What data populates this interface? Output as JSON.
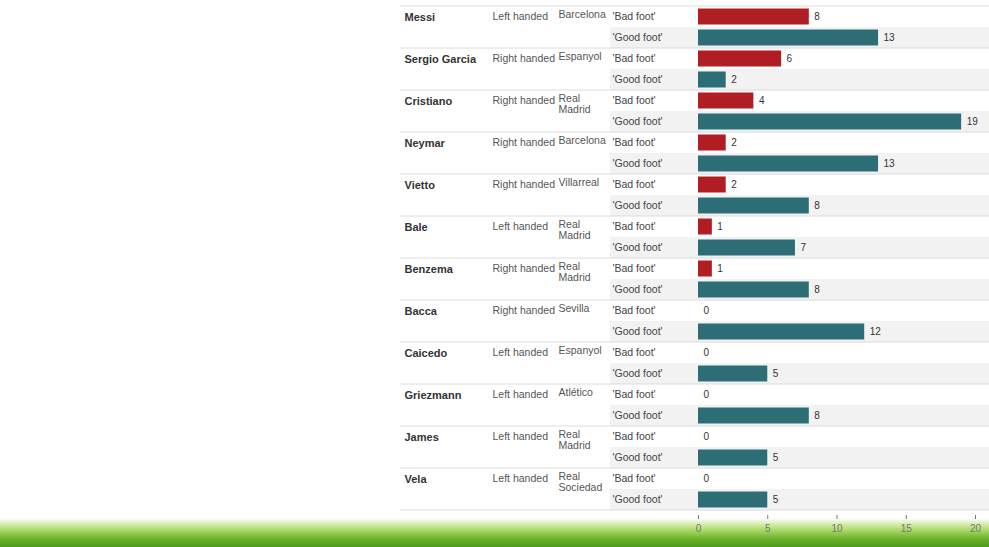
{
  "chart_data": {
    "type": "bar",
    "orientation": "horizontal",
    "categories": [
      "Messi",
      "Sergio Garcia",
      "Cristiano",
      "Neymar",
      "Vietto",
      "Bale",
      "Benzema",
      "Bacca",
      "Caicedo",
      "Griezmann",
      "James",
      "Vela"
    ],
    "handedness": [
      "Left handed",
      "Right handed",
      "Right handed",
      "Right handed",
      "Right handed",
      "Left handed",
      "Right handed",
      "Right handed",
      "Left handed",
      "Left handed",
      "Left handed",
      "Left handed"
    ],
    "clubs": [
      "Barcelona",
      "Espanyol",
      "Real Madrid",
      "Barcelona",
      "Villarreal",
      "Real Madrid",
      "Real Madrid",
      "Sevilla",
      "Espanyol",
      "Atlético",
      "Real Madrid",
      "Real Sociedad"
    ],
    "series": [
      {
        "name": "'Bad foot'",
        "color": "#b01e23",
        "values": [
          8,
          6,
          4,
          2,
          2,
          1,
          1,
          0,
          0,
          0,
          0,
          0
        ]
      },
      {
        "name": "'Good foot'",
        "color": "#2d6e76",
        "values": [
          13,
          2,
          19,
          13,
          8,
          7,
          8,
          12,
          5,
          8,
          5,
          5
        ]
      }
    ],
    "xlim": [
      0,
      20
    ],
    "xticks": [
      0,
      5,
      10,
      15,
      20
    ],
    "grid": false,
    "data_labels": true
  }
}
